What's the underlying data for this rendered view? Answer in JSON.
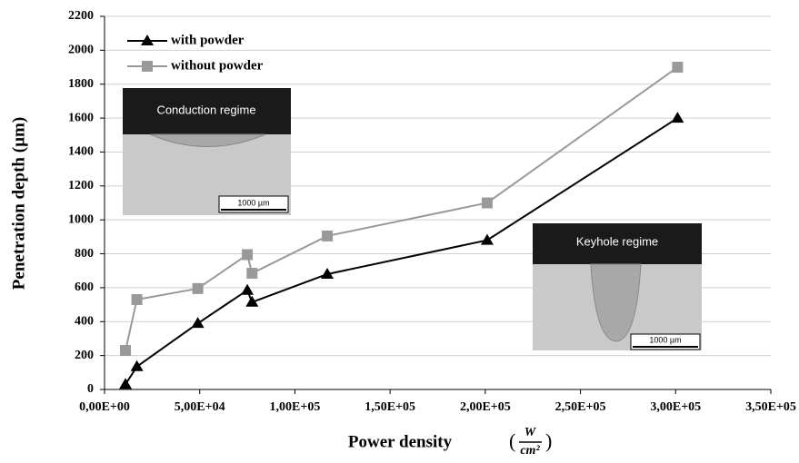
{
  "chart_data": {
    "type": "line",
    "x_label": "Power density",
    "x_unit": {
      "open": "(",
      "numerator": "W",
      "denominator": "cm²",
      "close": ")"
    },
    "y_label": "Penetration depth (µm)",
    "x": [
      11000,
      17000,
      49000,
      75000,
      77500,
      117000,
      201000,
      301000
    ],
    "series": [
      {
        "name": "with powder",
        "color": "#000000",
        "marker": "triangle",
        "values": [
          30,
          135,
          390,
          585,
          515,
          680,
          880,
          1600
        ]
      },
      {
        "name": "without powder",
        "color": "#999999",
        "marker": "square",
        "values": [
          230,
          530,
          595,
          795,
          685,
          905,
          1100,
          1900
        ]
      }
    ],
    "xlim": [
      0,
      350000
    ],
    "xticks": [
      {
        "value": 0,
        "label": "0,00E+00"
      },
      {
        "value": 50000,
        "label": "5,00E+04"
      },
      {
        "value": 100000,
        "label": "1,00E+05"
      },
      {
        "value": 150000,
        "label": "1,50E+05"
      },
      {
        "value": 200000,
        "label": "2,00E+05"
      },
      {
        "value": 250000,
        "label": "2,50E+05"
      },
      {
        "value": 300000,
        "label": "3,00E+05"
      },
      {
        "value": 350000,
        "label": "3,50E+05"
      }
    ],
    "ylim": [
      0,
      2200
    ],
    "yticks": [
      0,
      200,
      400,
      600,
      800,
      1000,
      1200,
      1400,
      1600,
      1800,
      2000,
      2200
    ],
    "grid": true,
    "legend": "top-left",
    "insets": [
      {
        "label": "Conduction regime",
        "scale_bar": "1000 µm"
      },
      {
        "label": "Keyhole regime",
        "scale_bar": "1000 µm"
      }
    ]
  }
}
